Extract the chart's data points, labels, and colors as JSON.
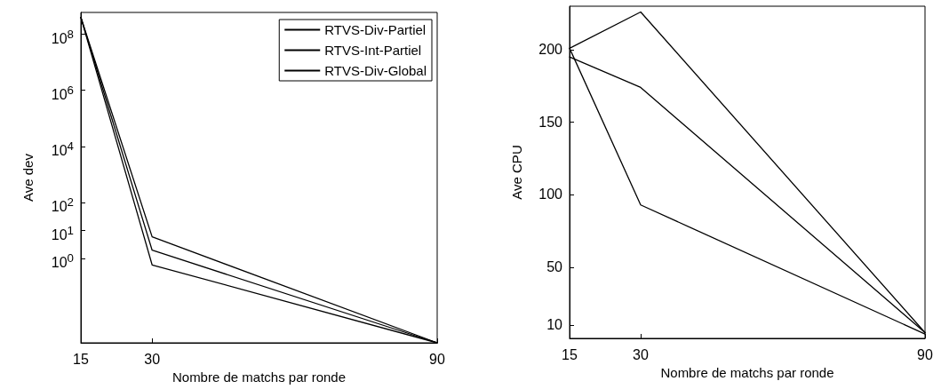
{
  "chart_data": [
    {
      "type": "line",
      "xlabel": "Nombre de matchs par ronde",
      "ylabel": "Ave dev",
      "log": "y",
      "x": [
        15,
        30,
        90
      ],
      "xlim": [
        15,
        90
      ],
      "xticks": [
        15,
        30,
        90
      ],
      "ylim": [
        0.001,
        600000000
      ],
      "yticks": [
        {
          "value": 1,
          "label": "10$^{0}$"
        },
        {
          "value": 10,
          "label": "10$^{1}$"
        },
        {
          "value": 100,
          "label": "10$^{2}$"
        },
        {
          "value": 10000,
          "label": "10$^{4}$"
        },
        {
          "value": 1000000,
          "label": "10$^{6}$"
        },
        {
          "value": 100000000,
          "label": "10$^{8}$"
        }
      ],
      "grid": false,
      "legend": "top right",
      "line_style": "solid",
      "marker": "none",
      "series": [
        {
          "name": "RTVS-Div-Partiel",
          "color": "#000000",
          "values": [
            400000000,
            6,
            0.001
          ]
        },
        {
          "name": "RTVS-Int-Partiel",
          "color": "#000000",
          "values": [
            400000000,
            2,
            0.001
          ]
        },
        {
          "name": "RTVS-Div-Global",
          "color": "#000000",
          "values": [
            400000000,
            0.6,
            0.001
          ]
        }
      ]
    },
    {
      "type": "line",
      "xlabel": "Nombre de matchs par ronde",
      "ylabel": "Ave CPU",
      "x": [
        15,
        30,
        90
      ],
      "xlim": [
        15,
        90
      ],
      "xticks": [
        15,
        30,
        90
      ],
      "ylim": [
        1,
        230
      ],
      "yticks": [
        10,
        50,
        100,
        150,
        200
      ],
      "grid": false,
      "legend": false,
      "line_style": "solid",
      "marker": "none",
      "series": [
        {
          "color": "#000000",
          "values": [
            201,
            226,
            5
          ]
        },
        {
          "color": "#000000",
          "values": [
            195,
            174,
            5
          ]
        },
        {
          "color": "#000000",
          "values": [
            201,
            93,
            4
          ]
        }
      ]
    }
  ]
}
